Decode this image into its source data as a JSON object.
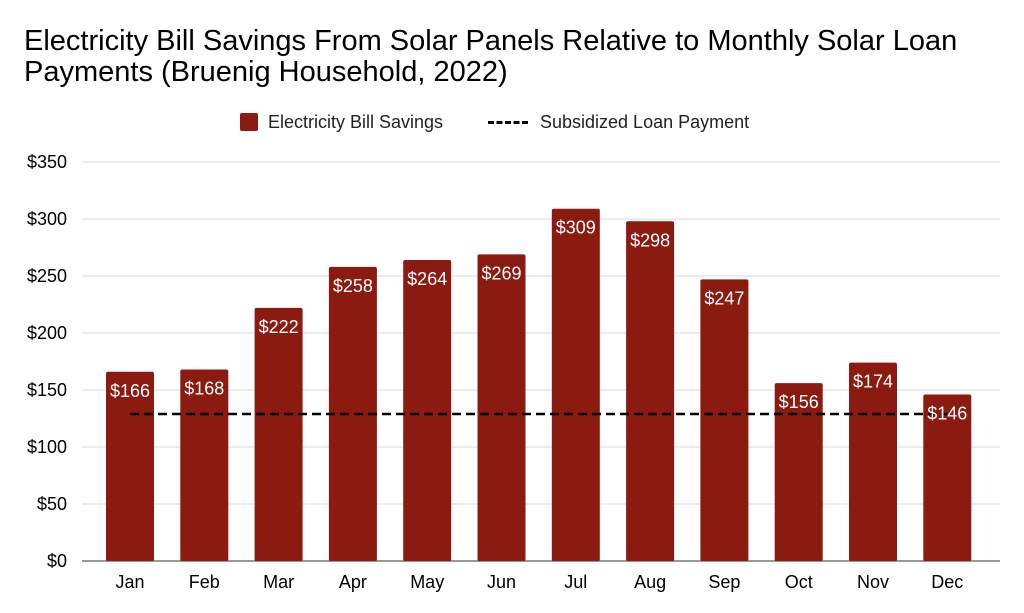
{
  "chart_data": {
    "type": "bar",
    "title": "Electricity Bill Savings From Solar Panels Relative to Monthly Solar Loan Payments (Bruenig Household, 2022)",
    "categories": [
      "Jan",
      "Feb",
      "Mar",
      "Apr",
      "May",
      "Jun",
      "Jul",
      "Aug",
      "Sep",
      "Oct",
      "Nov",
      "Dec"
    ],
    "series": [
      {
        "name": "Electricity Bill Savings",
        "type": "bar",
        "color": "#8b1a10",
        "values": [
          166,
          168,
          222,
          258,
          264,
          269,
          309,
          298,
          247,
          156,
          174,
          146
        ],
        "data_labels": [
          "$166",
          "$168",
          "$222",
          "$258",
          "$264",
          "$269",
          "$309",
          "$298",
          "$247",
          "$156",
          "$174",
          "$146"
        ]
      },
      {
        "name": "Subsidized Loan Payment",
        "type": "line",
        "style": "dashed",
        "color": "#000000",
        "value": 129
      }
    ],
    "ylim": [
      0,
      350
    ],
    "yticks": [
      0,
      50,
      100,
      150,
      200,
      250,
      300,
      350
    ],
    "ytick_labels": [
      "$0",
      "$50",
      "$100",
      "$150",
      "$200",
      "$250",
      "$300",
      "$350"
    ],
    "xlabel": "",
    "ylabel": "",
    "grid": true,
    "legend": "top-center"
  }
}
